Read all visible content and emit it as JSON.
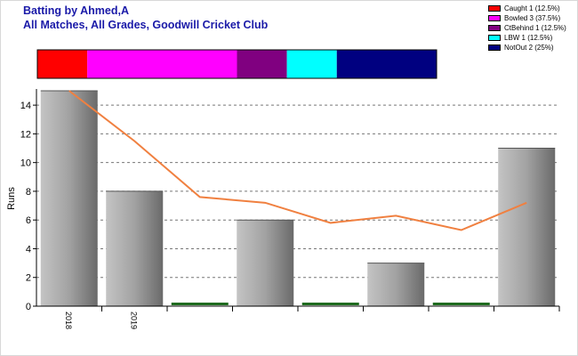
{
  "header": {
    "title": "Batting by Ahmed,A",
    "subtitle": "All Matches, All Grades, Goodwill Cricket Club"
  },
  "legend": [
    {
      "label": "Caught 1 (12.5%)",
      "color": "#ff0000",
      "fraction": 0.125
    },
    {
      "label": "Bowled 3 (37.5%)",
      "color": "#ff00ff",
      "fraction": 0.375
    },
    {
      "label": "CtBehind 1 (12.5%)",
      "color": "#800080",
      "fraction": 0.125
    },
    {
      "label": "LBW 1 (12.5%)",
      "color": "#00ffff",
      "fraction": 0.125
    },
    {
      "label": "NotOut 2 (25%)",
      "color": "#000080",
      "fraction": 0.25
    }
  ],
  "chart_data": {
    "type": "bar",
    "ylabel": "Runs",
    "ylim": [
      0,
      15
    ],
    "yticks": [
      0,
      2,
      4,
      6,
      8,
      10,
      12,
      14
    ],
    "grid": true,
    "xtick_labels": [
      "2018",
      "2019",
      "",
      "",
      "",
      "",
      "",
      ""
    ],
    "values": [
      15,
      8,
      0,
      6,
      0,
      3,
      0,
      11
    ],
    "trend_line": [
      15,
      11.5,
      7.6,
      7.2,
      5.8,
      6.3,
      5.3,
      7.2
    ],
    "colors": {
      "bar": "#999999",
      "zero_bar": "#1f6b1f",
      "trend": "#f08040",
      "grid": "#777777"
    }
  }
}
